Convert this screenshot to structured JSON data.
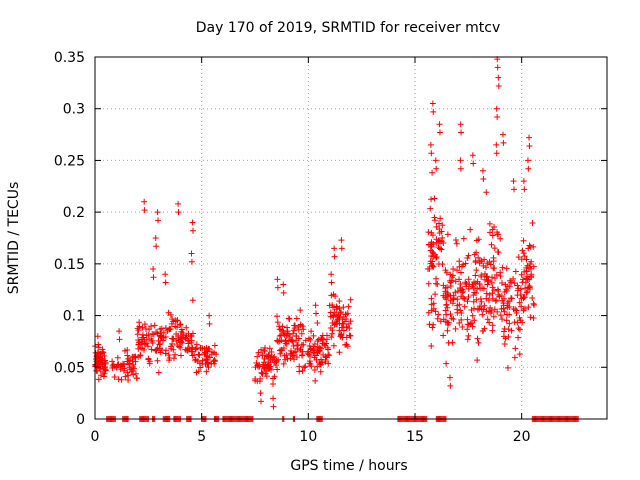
{
  "chart_data": {
    "type": "scatter",
    "title": "Day 170 of 2019, SRMTID for receiver mtcv",
    "xlabel": "GPS time / hours",
    "ylabel": "SRMTID / TECUs",
    "xlim": [
      0,
      24
    ],
    "ylim": [
      0,
      0.35
    ],
    "xticks": [
      0,
      5,
      10,
      15,
      20
    ],
    "yticks": [
      0,
      0.05,
      0.1,
      0.15,
      0.2,
      0.25,
      0.3,
      0.35
    ],
    "xtick_labels": [
      "0",
      "5",
      "10",
      "15",
      "20"
    ],
    "ytick_labels": [
      "0",
      "0.05",
      "0.1",
      "0.15",
      "0.2",
      "0.25",
      "0.3",
      "0.35"
    ],
    "grid": true,
    "marker": "+",
    "color": "#ff0000",
    "clusters": [
      {
        "t_start": 0.0,
        "t_end": 0.5,
        "mean": 0.055,
        "spread": 0.012,
        "n": 60,
        "peaks": [
          0.08
        ]
      },
      {
        "t_start": 0.8,
        "t_end": 2.0,
        "mean": 0.05,
        "spread": 0.012,
        "n": 50,
        "peaks": [
          0.085
        ]
      },
      {
        "t_start": 2.0,
        "t_end": 3.2,
        "mean": 0.075,
        "spread": 0.018,
        "n": 70,
        "peaks": [
          0.21,
          0.2,
          0.175,
          0.145
        ]
      },
      {
        "t_start": 3.2,
        "t_end": 4.6,
        "mean": 0.08,
        "spread": 0.02,
        "n": 80,
        "peaks": [
          0.208,
          0.19,
          0.16,
          0.14
        ]
      },
      {
        "t_start": 4.6,
        "t_end": 5.7,
        "mean": 0.06,
        "spread": 0.014,
        "n": 50,
        "peaks": [
          0.1
        ]
      },
      {
        "t_start": 7.5,
        "t_end": 8.5,
        "mean": 0.05,
        "spread": 0.014,
        "n": 60,
        "peaks": [
          0.02,
          0.025
        ]
      },
      {
        "t_start": 8.5,
        "t_end": 9.8,
        "mean": 0.075,
        "spread": 0.02,
        "n": 90,
        "peaks": [
          0.135,
          0.13
        ]
      },
      {
        "t_start": 9.8,
        "t_end": 11.0,
        "mean": 0.065,
        "spread": 0.018,
        "n": 70,
        "peaks": [
          0.11
        ]
      },
      {
        "t_start": 11.0,
        "t_end": 12.0,
        "mean": 0.095,
        "spread": 0.02,
        "n": 70,
        "peaks": [
          0.173,
          0.165,
          0.14
        ]
      },
      {
        "t_start": 15.6,
        "t_end": 16.3,
        "mean": 0.15,
        "spread": 0.05,
        "n": 70,
        "peaks": [
          0.305,
          0.285,
          0.265,
          0.25
        ]
      },
      {
        "t_start": 16.3,
        "t_end": 17.3,
        "mean": 0.12,
        "spread": 0.04,
        "n": 80,
        "peaks": [
          0.285,
          0.25,
          0.04
        ]
      },
      {
        "t_start": 17.3,
        "t_end": 18.3,
        "mean": 0.13,
        "spread": 0.04,
        "n": 80,
        "peaks": [
          0.255,
          0.24
        ]
      },
      {
        "t_start": 18.3,
        "t_end": 19.0,
        "mean": 0.14,
        "spread": 0.045,
        "n": 60,
        "peaks": [
          0.348,
          0.33,
          0.3,
          0.265
        ]
      },
      {
        "t_start": 19.0,
        "t_end": 20.0,
        "mean": 0.11,
        "spread": 0.035,
        "n": 70,
        "peaks": [
          0.275,
          0.23
        ]
      },
      {
        "t_start": 20.0,
        "t_end": 20.6,
        "mean": 0.13,
        "spread": 0.04,
        "n": 50,
        "peaks": [
          0.272,
          0.25,
          0.23
        ]
      }
    ],
    "zero_value_segments": [
      [
        0.55,
        1.0
      ],
      [
        1.3,
        1.6
      ],
      [
        2.1,
        2.5
      ],
      [
        2.7,
        2.8
      ],
      [
        3.2,
        3.5
      ],
      [
        3.7,
        4.0
      ],
      [
        4.3,
        4.5
      ],
      [
        5.0,
        5.2
      ],
      [
        5.6,
        5.8
      ],
      [
        6.0,
        7.4
      ],
      [
        8.8,
        8.9
      ],
      [
        9.3,
        9.4
      ],
      [
        10.4,
        10.7
      ],
      [
        14.2,
        15.6
      ],
      [
        16.0,
        16.5
      ],
      [
        20.5,
        22.7
      ]
    ]
  }
}
